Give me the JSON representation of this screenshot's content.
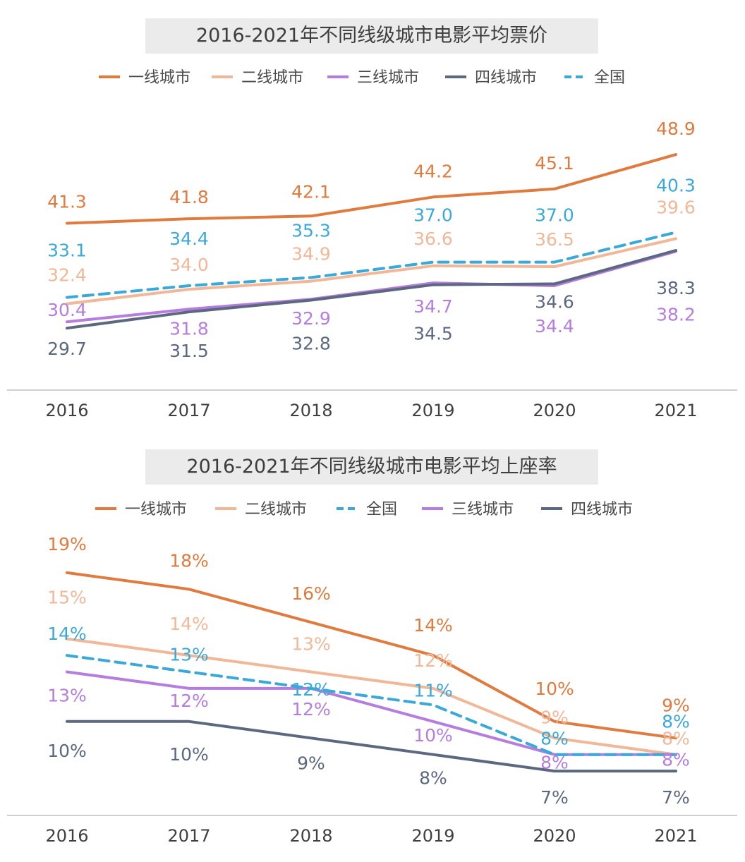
{
  "colors": {
    "tier1": "#e07b3f",
    "tier2": "#f0b898",
    "tier3": "#b57ddd",
    "tier4": "#5b6880",
    "national": "#3aa8d8",
    "title_bg": "#ebebeb",
    "axis": "#cfcfcf"
  },
  "chart_data": [
    {
      "type": "line",
      "title": "2016-2021年不同线级城市电影平均票价",
      "categories": [
        "2016",
        "2017",
        "2018",
        "2019",
        "2020",
        "2021"
      ],
      "ylim": [
        28,
        50
      ],
      "grid": false,
      "legend_position": "top",
      "series": [
        {
          "name": "一线城市",
          "color_key": "tier1",
          "dashed": false,
          "values": [
            41.3,
            41.8,
            42.1,
            44.2,
            45.1,
            48.9
          ],
          "labels": [
            "41.3",
            "41.8",
            "42.1",
            "44.2",
            "45.1",
            "48.9"
          ]
        },
        {
          "name": "二线城市",
          "color_key": "tier2",
          "dashed": false,
          "values": [
            32.4,
            34.0,
            34.9,
            36.6,
            36.5,
            39.6
          ],
          "labels": [
            "32.4",
            "34.0",
            "34.9",
            "36.6",
            "36.5",
            "39.6"
          ]
        },
        {
          "name": "三线城市",
          "color_key": "tier3",
          "dashed": false,
          "values": [
            30.4,
            31.8,
            32.9,
            34.7,
            34.4,
            38.2
          ],
          "labels": [
            "30.4",
            "31.8",
            "32.9",
            "34.7",
            "34.4",
            "38.2"
          ]
        },
        {
          "name": "四线城市",
          "color_key": "tier4",
          "dashed": false,
          "values": [
            29.7,
            31.5,
            32.8,
            34.5,
            34.6,
            38.3
          ],
          "labels": [
            "29.7",
            "31.5",
            "32.8",
            "34.5",
            "34.6",
            "38.3"
          ]
        },
        {
          "name": "全国",
          "color_key": "national",
          "dashed": true,
          "values": [
            33.1,
            34.4,
            35.3,
            37.0,
            37.0,
            40.3
          ],
          "labels": [
            "33.1",
            "34.4",
            "35.3",
            "37.0",
            "37.0",
            "40.3"
          ]
        }
      ]
    },
    {
      "type": "line",
      "title": "2016-2021年不同线级城市电影平均上座率",
      "categories": [
        "2016",
        "2017",
        "2018",
        "2019",
        "2020",
        "2021"
      ],
      "ylim": [
        5,
        21
      ],
      "grid": false,
      "legend_position": "top",
      "series": [
        {
          "name": "一线城市",
          "color_key": "tier1",
          "dashed": false,
          "values": [
            19,
            18,
            16,
            14,
            10,
            9
          ],
          "labels": [
            "19%",
            "18%",
            "16%",
            "14%",
            "10%",
            "9%"
          ]
        },
        {
          "name": "二线城市",
          "color_key": "tier2",
          "dashed": false,
          "values": [
            15,
            14,
            13,
            12,
            9,
            8
          ],
          "labels": [
            "15%",
            "14%",
            "13%",
            "12%",
            "9%",
            "8%"
          ]
        },
        {
          "name": "全国",
          "color_key": "national",
          "dashed": true,
          "values": [
            14,
            13,
            12,
            11,
            8,
            8
          ],
          "labels": [
            "14%",
            "13%",
            "12%",
            "11%",
            "8%",
            "8%"
          ]
        },
        {
          "name": "三线城市",
          "color_key": "tier3",
          "dashed": false,
          "values": [
            13,
            12,
            12,
            10,
            8,
            8
          ],
          "labels": [
            "13%",
            "12%",
            "12%",
            "10%",
            "8%",
            "8%"
          ]
        },
        {
          "name": "四线城市",
          "color_key": "tier4",
          "dashed": false,
          "values": [
            10,
            10,
            9,
            8,
            7,
            7
          ],
          "labels": [
            "10%",
            "10%",
            "9%",
            "8%",
            "7%",
            "7%"
          ]
        }
      ]
    }
  ]
}
